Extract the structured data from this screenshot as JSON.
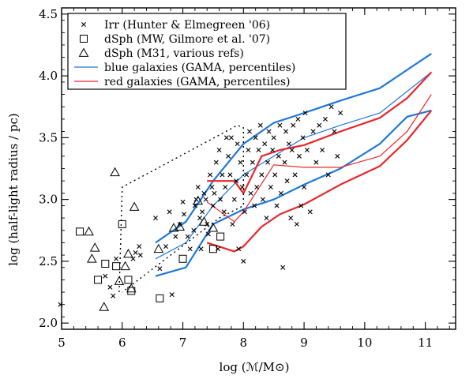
{
  "chart_data": {
    "type": "scatter",
    "xlabel": "log (ℳ/M⊙)",
    "ylabel": "log (half-light radius / pc)",
    "xlim": [
      5,
      11.5
    ],
    "ylim": [
      1.95,
      4.55
    ],
    "x_ticks": [
      5,
      6,
      7,
      8,
      9,
      10,
      11
    ],
    "y_ticks": [
      2.0,
      2.5,
      3.0,
      3.5,
      4.0,
      4.5
    ],
    "x_tick_labels": [
      "5",
      "6",
      "7",
      "8",
      "9",
      "10",
      "11"
    ],
    "y_tick_labels": [
      "2.0",
      "2.5",
      "3.0",
      "3.5",
      "4.0",
      "4.5"
    ],
    "legend_position": "top-left",
    "legend": [
      {
        "label": "Irr (Hunter & Elmegreen '06)",
        "marker": "cross",
        "color": "#000000"
      },
      {
        "label": "dSph (MW, Gilmore et al. '07)",
        "marker": "square",
        "color": "#000000"
      },
      {
        "label": "dSph (M31, various refs)",
        "marker": "triangle",
        "color": "#000000"
      },
      {
        "label": "blue galaxies (GAMA, percentiles)",
        "marker": "line",
        "color": "#1f78d8"
      },
      {
        "label": "red galaxies (GAMA, percentiles)",
        "marker": "line",
        "color": "#e8262c"
      }
    ],
    "colors": {
      "blue": "#1f78d8",
      "red": "#e8262c",
      "black": "#000000"
    },
    "series": [
      {
        "marker": "cross",
        "points": [
          [
            4.98,
            2.15
          ],
          [
            5.72,
            2.38
          ],
          [
            5.8,
            2.29
          ],
          [
            5.85,
            2.22
          ],
          [
            5.9,
            2.52
          ],
          [
            6.18,
            2.52
          ],
          [
            6.22,
            2.57
          ],
          [
            6.28,
            2.62
          ],
          [
            6.3,
            2.55
          ],
          [
            6.55,
            2.85
          ],
          [
            6.62,
            2.44
          ],
          [
            6.72,
            2.62
          ],
          [
            6.78,
            2.9
          ],
          [
            6.82,
            2.23
          ],
          [
            6.88,
            2.7
          ],
          [
            6.95,
            2.8
          ],
          [
            7.0,
            2.98
          ],
          [
            7.02,
            2.88
          ],
          [
            7.08,
            2.7
          ],
          [
            7.12,
            2.6
          ],
          [
            7.18,
            2.75
          ],
          [
            7.2,
            2.95
          ],
          [
            7.22,
            3.0
          ],
          [
            7.25,
            3.1
          ],
          [
            7.28,
            2.85
          ],
          [
            7.3,
            2.6
          ],
          [
            7.32,
            2.9
          ],
          [
            7.35,
            3.05
          ],
          [
            7.38,
            3.0
          ],
          [
            7.4,
            2.8
          ],
          [
            7.42,
            2.72
          ],
          [
            7.45,
            3.2
          ],
          [
            7.48,
            3.1
          ],
          [
            7.5,
            2.95
          ],
          [
            7.52,
            3.05
          ],
          [
            7.55,
            3.3
          ],
          [
            7.58,
            2.6
          ],
          [
            7.6,
            3.4
          ],
          [
            7.62,
            3.0
          ],
          [
            7.65,
            3.2
          ],
          [
            7.68,
            2.9
          ],
          [
            7.7,
            3.1
          ],
          [
            7.72,
            3.5
          ],
          [
            7.75,
            3.35
          ],
          [
            7.78,
            3.2
          ],
          [
            7.8,
            3.5
          ],
          [
            7.82,
            2.8
          ],
          [
            7.85,
            3.0
          ],
          [
            7.88,
            3.15
          ],
          [
            7.9,
            3.45
          ],
          [
            7.92,
            2.6
          ],
          [
            7.95,
            3.3
          ],
          [
            7.98,
            3.1
          ],
          [
            8.0,
            2.5
          ],
          [
            8.02,
            2.9
          ],
          [
            8.05,
            3.2
          ],
          [
            8.08,
            3.4
          ],
          [
            8.1,
            3.55
          ],
          [
            8.12,
            3.05
          ],
          [
            8.15,
            3.3
          ],
          [
            8.18,
            2.95
          ],
          [
            8.2,
            3.5
          ],
          [
            8.22,
            3.1
          ],
          [
            8.25,
            3.4
          ],
          [
            8.28,
            3.6
          ],
          [
            8.3,
            3.2
          ],
          [
            8.32,
            3.0
          ],
          [
            8.35,
            3.45
          ],
          [
            8.38,
            2.85
          ],
          [
            8.4,
            3.3
          ],
          [
            8.42,
            3.55
          ],
          [
            8.45,
            3.1
          ],
          [
            8.48,
            3.4
          ],
          [
            8.5,
            3.5
          ],
          [
            8.52,
            3.2
          ],
          [
            8.55,
            2.95
          ],
          [
            8.58,
            3.35
          ],
          [
            8.6,
            3.6
          ],
          [
            8.62,
            3.05
          ],
          [
            8.65,
            2.45
          ],
          [
            8.68,
            3.3
          ],
          [
            8.7,
            3.55
          ],
          [
            8.72,
            3.15
          ],
          [
            8.75,
            3.45
          ],
          [
            8.78,
            2.85
          ],
          [
            8.8,
            3.4
          ],
          [
            8.82,
            3.6
          ],
          [
            8.85,
            3.2
          ],
          [
            8.88,
            2.8
          ],
          [
            8.9,
            3.65
          ],
          [
            8.92,
            3.35
          ],
          [
            8.95,
            2.95
          ],
          [
            8.98,
            3.5
          ],
          [
            9.0,
            3.1
          ],
          [
            9.02,
            3.7
          ],
          [
            9.05,
            3.4
          ],
          [
            9.1,
            2.9
          ],
          [
            9.15,
            3.55
          ],
          [
            9.2,
            3.3
          ],
          [
            9.25,
            3.6
          ],
          [
            9.3,
            3.4
          ],
          [
            9.35,
            3.65
          ],
          [
            9.4,
            3.2
          ],
          [
            9.45,
            3.75
          ],
          [
            9.5,
            3.55
          ],
          [
            9.55,
            3.35
          ],
          [
            9.6,
            3.7
          ]
        ]
      },
      {
        "marker": "square",
        "points": [
          [
            5.3,
            2.74
          ],
          [
            5.6,
            2.35
          ],
          [
            5.72,
            2.48
          ],
          [
            5.9,
            2.46
          ],
          [
            6.0,
            2.8
          ],
          [
            6.1,
            2.35
          ],
          [
            6.15,
            2.26
          ],
          [
            6.62,
            2.2
          ],
          [
            7.0,
            2.52
          ],
          [
            7.5,
            2.6
          ],
          [
            7.62,
            2.7
          ]
        ]
      },
      {
        "marker": "triangle",
        "points": [
          [
            5.45,
            2.74
          ],
          [
            5.5,
            2.52
          ],
          [
            5.55,
            2.61
          ],
          [
            5.7,
            2.13
          ],
          [
            5.88,
            3.22
          ],
          [
            5.95,
            2.34
          ],
          [
            6.05,
            2.46
          ],
          [
            6.1,
            2.56
          ],
          [
            6.15,
            2.28
          ],
          [
            6.2,
            2.94
          ],
          [
            6.6,
            2.6
          ],
          [
            6.85,
            2.77
          ],
          [
            6.95,
            2.78
          ],
          [
            7.25,
            2.99
          ],
          [
            7.35,
            2.82
          ],
          [
            7.5,
            2.77
          ]
        ]
      }
    ],
    "lines": [
      {
        "color": "#1f78d8",
        "width": 2.2,
        "points": [
          [
            6.55,
            2.65
          ],
          [
            7.05,
            2.82
          ],
          [
            7.5,
            3.15
          ],
          [
            8.0,
            3.45
          ],
          [
            8.5,
            3.62
          ],
          [
            9.0,
            3.7
          ],
          [
            9.6,
            3.8
          ],
          [
            10.25,
            3.9
          ],
          [
            11.1,
            4.18
          ]
        ]
      },
      {
        "color": "#1f78d8",
        "width": 1.2,
        "points": [
          [
            6.55,
            2.52
          ],
          [
            7.05,
            2.65
          ],
          [
            7.5,
            2.95
          ],
          [
            8.0,
            3.2
          ],
          [
            8.5,
            3.35
          ],
          [
            9.0,
            3.5
          ],
          [
            9.6,
            3.6
          ],
          [
            10.25,
            3.7
          ],
          [
            11.1,
            4.03
          ]
        ]
      },
      {
        "color": "#1f78d8",
        "width": 2.2,
        "points": [
          [
            6.55,
            2.38
          ],
          [
            7.05,
            2.45
          ],
          [
            7.5,
            2.8
          ],
          [
            8.0,
            2.92
          ],
          [
            8.5,
            3.0
          ],
          [
            9.0,
            3.12
          ],
          [
            9.6,
            3.25
          ],
          [
            10.25,
            3.45
          ],
          [
            10.7,
            3.67
          ],
          [
            11.1,
            3.72
          ]
        ]
      },
      {
        "color": "#e8262c",
        "width": 2.2,
        "points": [
          [
            7.4,
            3.15
          ],
          [
            7.85,
            3.15
          ],
          [
            8.0,
            3.05
          ],
          [
            8.3,
            3.35
          ],
          [
            8.6,
            3.4
          ],
          [
            9.0,
            3.44
          ],
          [
            9.6,
            3.55
          ],
          [
            10.25,
            3.66
          ],
          [
            10.7,
            3.82
          ],
          [
            11.1,
            4.03
          ]
        ]
      },
      {
        "color": "#e8262c",
        "width": 1.2,
        "points": [
          [
            7.4,
            2.98
          ],
          [
            7.85,
            2.82
          ],
          [
            8.0,
            2.9
          ],
          [
            8.5,
            3.28
          ],
          [
            9.0,
            3.26
          ],
          [
            9.6,
            3.26
          ],
          [
            10.25,
            3.35
          ],
          [
            10.7,
            3.55
          ],
          [
            11.1,
            3.85
          ]
        ]
      },
      {
        "color": "#e8262c",
        "width": 2.2,
        "points": [
          [
            7.4,
            2.65
          ],
          [
            7.85,
            2.58
          ],
          [
            8.0,
            2.62
          ],
          [
            8.3,
            2.78
          ],
          [
            8.6,
            2.88
          ],
          [
            9.0,
            2.96
          ],
          [
            9.6,
            3.12
          ],
          [
            10.25,
            3.27
          ],
          [
            10.7,
            3.48
          ],
          [
            11.1,
            3.72
          ]
        ]
      },
      {
        "color": "#000000",
        "width": 1.4,
        "dash": "2,4",
        "points": [
          [
            5.95,
            2.25
          ],
          [
            6.0,
            3.1
          ],
          [
            7.9,
            3.6
          ],
          [
            8.0,
            3.58
          ],
          [
            8.0,
            2.95
          ],
          [
            7.6,
            2.85
          ],
          [
            6.0,
            2.25
          ]
        ]
      }
    ]
  }
}
